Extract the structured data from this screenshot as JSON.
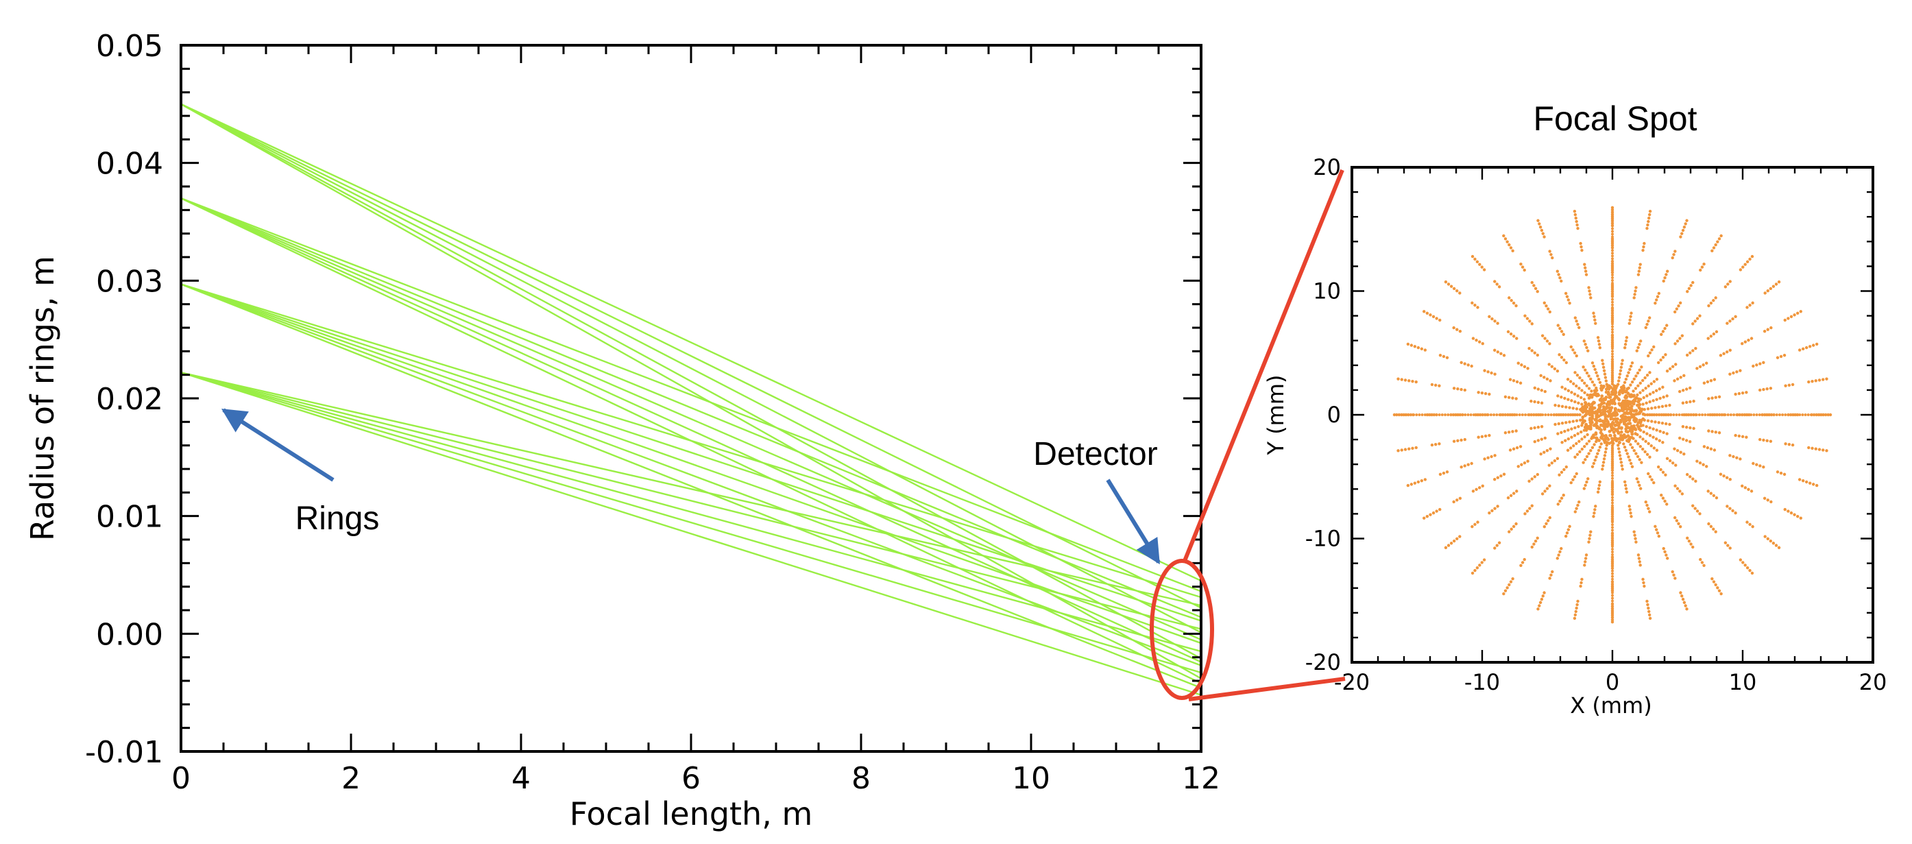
{
  "chart_data": [
    {
      "type": "line",
      "xlabel": "Focal length, m",
      "ylabel": "Radius of rings, m",
      "xlim": [
        0,
        12
      ],
      "ylim": [
        -0.01,
        0.05
      ],
      "x_ticks": [
        "0",
        "2",
        "4",
        "6",
        "8",
        "10",
        "12"
      ],
      "y_ticks": [
        "-0.01",
        "0.00",
        "0.01",
        "0.02",
        "0.03",
        "0.04",
        "0.05"
      ],
      "line_color": "#99EE44",
      "ring_radii": [
        0.045,
        0.037,
        0.0297,
        0.0222
      ],
      "series": [
        {
          "ring": 0.045,
          "x": [
            0,
            12
          ],
          "y": [
            0.045,
            0.0045
          ]
        },
        {
          "ring": 0.045,
          "x": [
            0,
            12
          ],
          "y": [
            0.045,
            0.0022
          ]
        },
        {
          "ring": 0.045,
          "x": [
            0,
            12
          ],
          "y": [
            0.045,
            0.0001
          ]
        },
        {
          "ring": 0.045,
          "x": [
            0,
            12
          ],
          "y": [
            0.045,
            -0.0021
          ]
        },
        {
          "ring": 0.045,
          "x": [
            0,
            12
          ],
          "y": [
            0.045,
            -0.0038
          ]
        },
        {
          "ring": 0.037,
          "x": [
            0,
            12
          ],
          "y": [
            0.037,
            0.0036
          ]
        },
        {
          "ring": 0.037,
          "x": [
            0,
            12
          ],
          "y": [
            0.037,
            0.0014
          ]
        },
        {
          "ring": 0.037,
          "x": [
            0,
            12
          ],
          "y": [
            0.037,
            -0.0005
          ]
        },
        {
          "ring": 0.037,
          "x": [
            0,
            12
          ],
          "y": [
            0.037,
            -0.0024
          ]
        },
        {
          "ring": 0.037,
          "x": [
            0,
            12
          ],
          "y": [
            0.037,
            -0.0042
          ]
        },
        {
          "ring": 0.0297,
          "x": [
            0,
            12
          ],
          "y": [
            0.0297,
            0.0031
          ]
        },
        {
          "ring": 0.0297,
          "x": [
            0,
            12
          ],
          "y": [
            0.0297,
            0.0011
          ]
        },
        {
          "ring": 0.0297,
          "x": [
            0,
            12
          ],
          "y": [
            0.0297,
            -0.0008
          ]
        },
        {
          "ring": 0.0297,
          "x": [
            0,
            12
          ],
          "y": [
            0.0297,
            -0.0027
          ]
        },
        {
          "ring": 0.0297,
          "x": [
            0,
            12
          ],
          "y": [
            0.0297,
            -0.0046
          ]
        },
        {
          "ring": 0.0222,
          "x": [
            0,
            12
          ],
          "y": [
            0.0222,
            0.0024
          ]
        },
        {
          "ring": 0.0222,
          "x": [
            0,
            12
          ],
          "y": [
            0.0222,
            0.0004
          ]
        },
        {
          "ring": 0.0222,
          "x": [
            0,
            12
          ],
          "y": [
            0.0222,
            -0.0015
          ]
        },
        {
          "ring": 0.0222,
          "x": [
            0,
            12
          ],
          "y": [
            0.0222,
            -0.0033
          ]
        },
        {
          "ring": 0.0222,
          "x": [
            0,
            12
          ],
          "y": [
            0.0222,
            -0.0052
          ]
        }
      ],
      "annotations": [
        {
          "text": "Rings",
          "arrow_to": [
            0.45,
            0.0192
          ],
          "color": "#3B6FB6"
        },
        {
          "text": "Detector",
          "arrow_to": [
            11.6,
            0.006
          ],
          "color": "#3B6FB6"
        }
      ],
      "detector_marker": {
        "center": [
          11.75,
          0.0003
        ],
        "color": "#E8432E"
      }
    },
    {
      "type": "scatter",
      "title": "Focal Spot",
      "xlabel": "X (mm)",
      "ylabel": "Y (mm)",
      "xlim": [
        -20,
        20
      ],
      "ylim": [
        -20,
        20
      ],
      "x_ticks": [
        "-20",
        "-10",
        "0",
        "10",
        "20"
      ],
      "y_ticks": [
        "-20",
        "-10",
        "0",
        "10",
        "20"
      ],
      "point_color": "#F0963C",
      "pattern": {
        "spokes": 36,
        "core_radius_mm": 2.4,
        "spoke_segments_mm": [
          [
            2.5,
            4.5
          ],
          [
            5.5,
            6.5
          ],
          [
            7.5,
            8.6
          ],
          [
            9.6,
            10.5
          ],
          [
            11.5,
            12.5
          ],
          [
            13.5,
            14.3
          ],
          [
            15.3,
            16.8
          ]
        ]
      }
    }
  ]
}
